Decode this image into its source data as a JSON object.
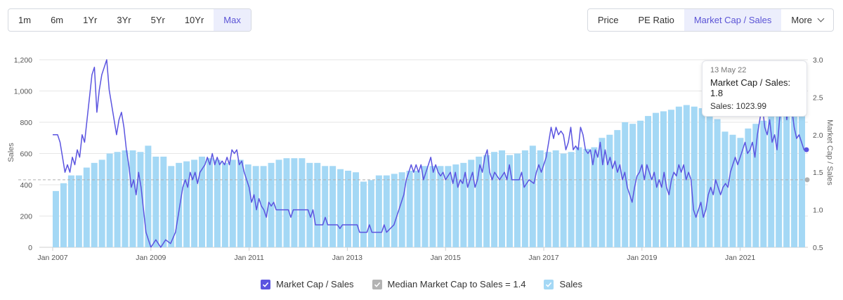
{
  "ranges": [
    "1m",
    "6m",
    "1Yr",
    "3Yr",
    "5Yr",
    "10Yr",
    "Max"
  ],
  "active_range": "Max",
  "metrics": [
    "Price",
    "PE Ratio",
    "Market Cap / Sales",
    "More"
  ],
  "active_metric": "Market Cap / Sales",
  "tooltip": {
    "date": "13 May 22",
    "main": "Market Cap / Sales: 1.8",
    "sales": "Sales: 1023.99"
  },
  "legend": {
    "mcs": "Market Cap / Sales",
    "median": "Median Market Cap to Sales = 1.4",
    "sales": "Sales"
  },
  "colors": {
    "line": "#5b54e0",
    "bars": "#a4d8f5",
    "median": "#b0b0b0",
    "active_bg": "#eceefc"
  },
  "chart_data": {
    "type": "bar+line",
    "title": "",
    "xlabel": "",
    "ylabel_left": "Sales",
    "ylabel_right": "Market Cap / Sales",
    "y_left_ticks": [
      "0",
      "200",
      "400",
      "600",
      "800",
      "1,000",
      "1,200"
    ],
    "y_left_range": [
      0,
      1200
    ],
    "y_right_ticks": [
      "0.5",
      "1.0",
      "1.5",
      "2.0",
      "2.5",
      "3.0"
    ],
    "y_right_range": [
      0.5,
      3.0
    ],
    "x_range": [
      2007.0,
      2022.35
    ],
    "x_ticks": [
      {
        "x": 2007,
        "label": "Jan 2007"
      },
      {
        "x": 2009,
        "label": "Jan 2009"
      },
      {
        "x": 2011,
        "label": "Jan 2011"
      },
      {
        "x": 2013,
        "label": "Jan 2013"
      },
      {
        "x": 2015,
        "label": "Jan 2015"
      },
      {
        "x": 2017,
        "label": "Jan 2017"
      },
      {
        "x": 2019,
        "label": "Jan 2019"
      },
      {
        "x": 2021,
        "label": "Jan 2021"
      }
    ],
    "median": 1.4,
    "sales": [
      360,
      410,
      460,
      460,
      510,
      540,
      560,
      600,
      610,
      620,
      620,
      610,
      650,
      580,
      580,
      520,
      540,
      550,
      560,
      580,
      570,
      560,
      540,
      560,
      560,
      530,
      520,
      520,
      540,
      560,
      570,
      570,
      570,
      540,
      540,
      520,
      520,
      500,
      490,
      480,
      420,
      430,
      460,
      460,
      470,
      480,
      490,
      490,
      520,
      520,
      520,
      520,
      530,
      540,
      560,
      580,
      590,
      610,
      620,
      590,
      600,
      620,
      650,
      620,
      610,
      620,
      600,
      610,
      640,
      630,
      640,
      700,
      720,
      750,
      800,
      790,
      810,
      840,
      860,
      870,
      880,
      900,
      910,
      900,
      890,
      860,
      820,
      740,
      720,
      700,
      760,
      790,
      810,
      860,
      880,
      920,
      940,
      1024
    ],
    "mcs_line": [
      [
        2007.0,
        2.0
      ],
      [
        2007.1,
        2.0
      ],
      [
        2007.15,
        1.9
      ],
      [
        2007.2,
        1.7
      ],
      [
        2007.25,
        1.5
      ],
      [
        2007.3,
        1.6
      ],
      [
        2007.35,
        1.5
      ],
      [
        2007.4,
        1.7
      ],
      [
        2007.45,
        1.6
      ],
      [
        2007.5,
        1.8
      ],
      [
        2007.55,
        1.7
      ],
      [
        2007.6,
        2.0
      ],
      [
        2007.65,
        1.9
      ],
      [
        2007.7,
        2.2
      ],
      [
        2007.75,
        2.5
      ],
      [
        2007.8,
        2.8
      ],
      [
        2007.85,
        2.9
      ],
      [
        2007.9,
        2.3
      ],
      [
        2007.95,
        2.6
      ],
      [
        2008.0,
        2.8
      ],
      [
        2008.05,
        2.9
      ],
      [
        2008.1,
        3.0
      ],
      [
        2008.15,
        2.6
      ],
      [
        2008.2,
        2.4
      ],
      [
        2008.25,
        2.2
      ],
      [
        2008.3,
        2.0
      ],
      [
        2008.35,
        2.2
      ],
      [
        2008.4,
        2.3
      ],
      [
        2008.45,
        2.1
      ],
      [
        2008.5,
        1.8
      ],
      [
        2008.55,
        1.6
      ],
      [
        2008.6,
        1.3
      ],
      [
        2008.65,
        1.4
      ],
      [
        2008.7,
        1.2
      ],
      [
        2008.75,
        1.5
      ],
      [
        2008.8,
        1.3
      ],
      [
        2008.85,
        1.0
      ],
      [
        2008.9,
        0.7
      ],
      [
        2008.95,
        0.6
      ],
      [
        2009.0,
        0.5
      ],
      [
        2009.1,
        0.6
      ],
      [
        2009.2,
        0.5
      ],
      [
        2009.3,
        0.6
      ],
      [
        2009.4,
        0.55
      ],
      [
        2009.5,
        0.7
      ],
      [
        2009.55,
        0.9
      ],
      [
        2009.6,
        1.1
      ],
      [
        2009.65,
        1.3
      ],
      [
        2009.7,
        1.4
      ],
      [
        2009.75,
        1.3
      ],
      [
        2009.8,
        1.5
      ],
      [
        2009.85,
        1.4
      ],
      [
        2009.9,
        1.5
      ],
      [
        2009.95,
        1.35
      ],
      [
        2010.0,
        1.5
      ],
      [
        2010.1,
        1.6
      ],
      [
        2010.15,
        1.7
      ],
      [
        2010.2,
        1.6
      ],
      [
        2010.25,
        1.75
      ],
      [
        2010.3,
        1.6
      ],
      [
        2010.35,
        1.7
      ],
      [
        2010.4,
        1.6
      ],
      [
        2010.45,
        1.65
      ],
      [
        2010.5,
        1.6
      ],
      [
        2010.55,
        1.7
      ],
      [
        2010.6,
        1.6
      ],
      [
        2010.65,
        1.8
      ],
      [
        2010.7,
        1.75
      ],
      [
        2010.75,
        1.8
      ],
      [
        2010.8,
        1.6
      ],
      [
        2010.85,
        1.65
      ],
      [
        2010.9,
        1.5
      ],
      [
        2010.95,
        1.4
      ],
      [
        2011.0,
        1.3
      ],
      [
        2011.05,
        1.1
      ],
      [
        2011.1,
        1.2
      ],
      [
        2011.15,
        1.0
      ],
      [
        2011.2,
        1.15
      ],
      [
        2011.25,
        1.05
      ],
      [
        2011.3,
        1.0
      ],
      [
        2011.35,
        0.9
      ],
      [
        2011.4,
        1.1
      ],
      [
        2011.45,
        1.05
      ],
      [
        2011.5,
        1.1
      ],
      [
        2011.55,
        1.0
      ],
      [
        2011.6,
        1.0
      ],
      [
        2011.8,
        1.0
      ],
      [
        2011.85,
        0.9
      ],
      [
        2011.9,
        1.0
      ],
      [
        2012.2,
        1.0
      ],
      [
        2012.25,
        0.9
      ],
      [
        2012.3,
        1.0
      ],
      [
        2012.35,
        0.8
      ],
      [
        2012.5,
        0.8
      ],
      [
        2012.55,
        0.9
      ],
      [
        2012.6,
        0.8
      ],
      [
        2012.8,
        0.8
      ],
      [
        2012.85,
        0.75
      ],
      [
        2012.9,
        0.8
      ],
      [
        2013.2,
        0.8
      ],
      [
        2013.25,
        0.7
      ],
      [
        2013.4,
        0.7
      ],
      [
        2013.45,
        0.8
      ],
      [
        2013.5,
        0.7
      ],
      [
        2013.7,
        0.7
      ],
      [
        2013.75,
        0.8
      ],
      [
        2013.8,
        0.7
      ],
      [
        2013.95,
        0.8
      ],
      [
        2014.0,
        0.9
      ],
      [
        2014.05,
        1.0
      ],
      [
        2014.1,
        1.1
      ],
      [
        2014.15,
        1.2
      ],
      [
        2014.2,
        1.4
      ],
      [
        2014.25,
        1.5
      ],
      [
        2014.3,
        1.6
      ],
      [
        2014.35,
        1.5
      ],
      [
        2014.4,
        1.6
      ],
      [
        2014.45,
        1.5
      ],
      [
        2014.5,
        1.6
      ],
      [
        2014.55,
        1.4
      ],
      [
        2014.6,
        1.5
      ],
      [
        2014.65,
        1.6
      ],
      [
        2014.7,
        1.7
      ],
      [
        2014.75,
        1.5
      ],
      [
        2014.8,
        1.6
      ],
      [
        2014.85,
        1.5
      ],
      [
        2014.9,
        1.45
      ],
      [
        2014.95,
        1.5
      ],
      [
        2015.0,
        1.4
      ],
      [
        2015.1,
        1.5
      ],
      [
        2015.15,
        1.35
      ],
      [
        2015.2,
        1.5
      ],
      [
        2015.25,
        1.3
      ],
      [
        2015.3,
        1.4
      ],
      [
        2015.35,
        1.35
      ],
      [
        2015.4,
        1.5
      ],
      [
        2015.45,
        1.3
      ],
      [
        2015.5,
        1.4
      ],
      [
        2015.55,
        1.5
      ],
      [
        2015.6,
        1.3
      ],
      [
        2015.65,
        1.4
      ],
      [
        2015.7,
        1.6
      ],
      [
        2015.75,
        1.5
      ],
      [
        2015.8,
        1.7
      ],
      [
        2015.85,
        1.8
      ],
      [
        2015.9,
        1.5
      ],
      [
        2015.95,
        1.4
      ],
      [
        2016.0,
        1.5
      ],
      [
        2016.1,
        1.4
      ],
      [
        2016.2,
        1.5
      ],
      [
        2016.25,
        1.4
      ],
      [
        2016.3,
        1.6
      ],
      [
        2016.35,
        1.4
      ],
      [
        2016.5,
        1.4
      ],
      [
        2016.55,
        1.5
      ],
      [
        2016.6,
        1.3
      ],
      [
        2016.7,
        1.4
      ],
      [
        2016.8,
        1.35
      ],
      [
        2016.85,
        1.5
      ],
      [
        2016.9,
        1.6
      ],
      [
        2016.95,
        1.5
      ],
      [
        2017.0,
        1.6
      ],
      [
        2017.05,
        1.7
      ],
      [
        2017.1,
        1.9
      ],
      [
        2017.15,
        2.1
      ],
      [
        2017.2,
        1.95
      ],
      [
        2017.25,
        2.1
      ],
      [
        2017.3,
        2.0
      ],
      [
        2017.35,
        2.05
      ],
      [
        2017.4,
        2.0
      ],
      [
        2017.45,
        1.8
      ],
      [
        2017.5,
        1.9
      ],
      [
        2017.55,
        2.1
      ],
      [
        2017.6,
        1.8
      ],
      [
        2017.65,
        1.85
      ],
      [
        2017.7,
        1.8
      ],
      [
        2017.75,
        2.1
      ],
      [
        2017.8,
        2.0
      ],
      [
        2017.85,
        1.8
      ],
      [
        2017.9,
        1.75
      ],
      [
        2017.95,
        1.8
      ],
      [
        2018.0,
        1.6
      ],
      [
        2018.05,
        1.8
      ],
      [
        2018.1,
        1.7
      ],
      [
        2018.15,
        1.9
      ],
      [
        2018.2,
        1.6
      ],
      [
        2018.25,
        1.8
      ],
      [
        2018.3,
        1.6
      ],
      [
        2018.35,
        1.7
      ],
      [
        2018.4,
        1.55
      ],
      [
        2018.45,
        1.65
      ],
      [
        2018.5,
        1.5
      ],
      [
        2018.55,
        1.6
      ],
      [
        2018.6,
        1.4
      ],
      [
        2018.65,
        1.5
      ],
      [
        2018.7,
        1.3
      ],
      [
        2018.75,
        1.2
      ],
      [
        2018.8,
        1.1
      ],
      [
        2018.85,
        1.3
      ],
      [
        2018.9,
        1.45
      ],
      [
        2018.95,
        1.5
      ],
      [
        2019.0,
        1.6
      ],
      [
        2019.05,
        1.4
      ],
      [
        2019.1,
        1.6
      ],
      [
        2019.15,
        1.5
      ],
      [
        2019.2,
        1.4
      ],
      [
        2019.25,
        1.5
      ],
      [
        2019.3,
        1.3
      ],
      [
        2019.35,
        1.4
      ],
      [
        2019.4,
        1.3
      ],
      [
        2019.45,
        1.5
      ],
      [
        2019.5,
        1.3
      ],
      [
        2019.55,
        1.2
      ],
      [
        2019.6,
        1.4
      ],
      [
        2019.65,
        1.5
      ],
      [
        2019.7,
        1.45
      ],
      [
        2019.75,
        1.6
      ],
      [
        2019.8,
        1.5
      ],
      [
        2019.85,
        1.6
      ],
      [
        2019.9,
        1.4
      ],
      [
        2019.95,
        1.5
      ],
      [
        2020.0,
        1.4
      ],
      [
        2020.05,
        1.0
      ],
      [
        2020.1,
        0.9
      ],
      [
        2020.15,
        1.0
      ],
      [
        2020.2,
        1.1
      ],
      [
        2020.25,
        0.9
      ],
      [
        2020.3,
        1.0
      ],
      [
        2020.35,
        1.2
      ],
      [
        2020.4,
        1.3
      ],
      [
        2020.45,
        1.2
      ],
      [
        2020.5,
        1.4
      ],
      [
        2020.55,
        1.3
      ],
      [
        2020.6,
        1.2
      ],
      [
        2020.65,
        1.3
      ],
      [
        2020.7,
        1.35
      ],
      [
        2020.75,
        1.3
      ],
      [
        2020.8,
        1.5
      ],
      [
        2020.85,
        1.6
      ],
      [
        2020.9,
        1.7
      ],
      [
        2020.95,
        1.6
      ],
      [
        2021.0,
        1.7
      ],
      [
        2021.05,
        1.8
      ],
      [
        2021.1,
        1.9
      ],
      [
        2021.15,
        1.75
      ],
      [
        2021.2,
        1.8
      ],
      [
        2021.25,
        1.9
      ],
      [
        2021.3,
        1.7
      ],
      [
        2021.35,
        2.0
      ],
      [
        2021.4,
        2.2
      ],
      [
        2021.45,
        2.4
      ],
      [
        2021.5,
        2.1
      ],
      [
        2021.55,
        2.0
      ],
      [
        2021.6,
        2.2
      ],
      [
        2021.65,
        1.9
      ],
      [
        2021.7,
        2.0
      ],
      [
        2021.75,
        1.8
      ],
      [
        2021.8,
        2.2
      ],
      [
        2021.85,
        2.4
      ],
      [
        2021.9,
        2.5
      ],
      [
        2021.95,
        2.2
      ],
      [
        2022.0,
        2.5
      ],
      [
        2022.05,
        2.35
      ],
      [
        2022.1,
        2.1
      ],
      [
        2022.15,
        1.95
      ],
      [
        2022.2,
        2.0
      ],
      [
        2022.25,
        1.9
      ],
      [
        2022.3,
        1.8
      ],
      [
        2022.35,
        1.8
      ]
    ],
    "highlight_point": [
      2022.35,
      1.8
    ]
  }
}
